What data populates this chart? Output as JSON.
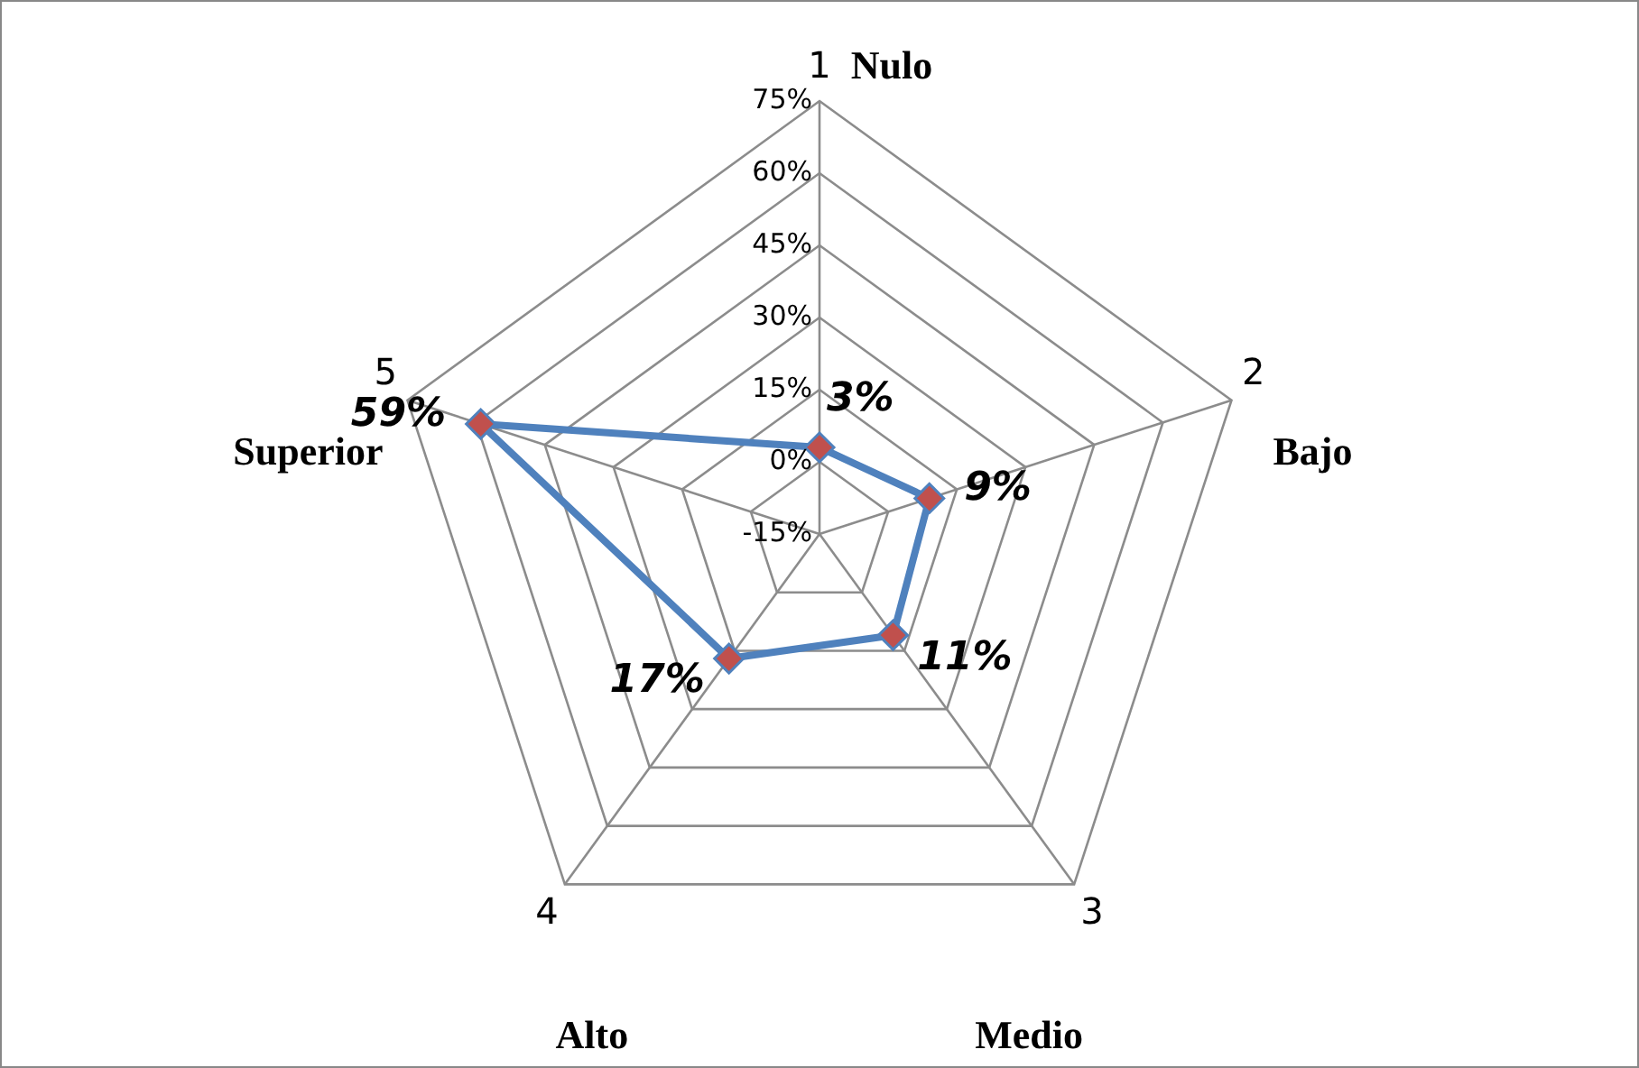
{
  "chart_data": {
    "type": "radar",
    "categories": [
      "1",
      "2",
      "3",
      "4",
      "5"
    ],
    "series": [
      {
        "color": "#4f81bd",
        "values": [
          3,
          9,
          11,
          17,
          59
        ],
        "value_labels": [
          "3%",
          "9%",
          "11%",
          "17%",
          "59%"
        ]
      }
    ],
    "ylim": [
      -15,
      75
    ],
    "yticks": [
      {
        "value": -15,
        "label": "-15%"
      },
      {
        "value": 0,
        "label": "0%"
      },
      {
        "value": 15,
        "label": "15%"
      },
      {
        "value": 30,
        "label": "30%"
      },
      {
        "value": 45,
        "label": "45%"
      },
      {
        "value": 60,
        "label": "60%"
      },
      {
        "value": 75,
        "label": "75%"
      }
    ],
    "annotations": [
      "Nulo",
      "Bajo",
      "Medio",
      "Alto",
      "Superior"
    ],
    "grid": true,
    "legend": false,
    "marker": "diamond",
    "line_style": "solid"
  }
}
